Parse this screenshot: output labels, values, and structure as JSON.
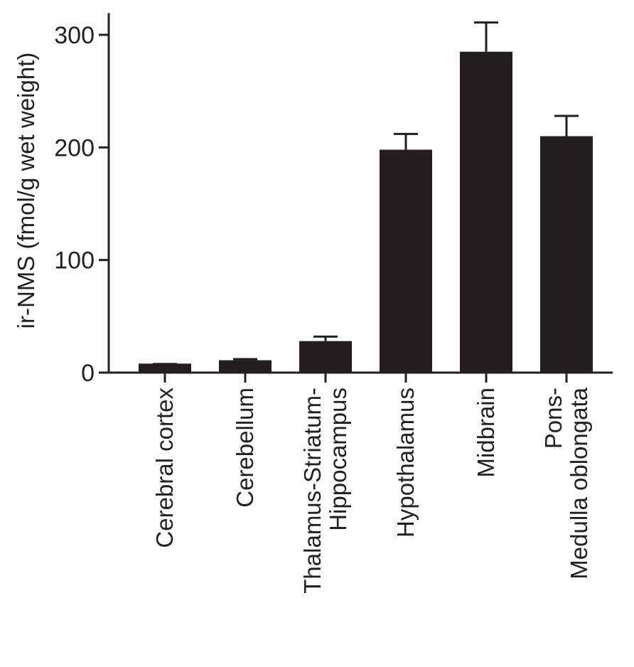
{
  "chart_data": {
    "type": "bar",
    "title": "",
    "xlabel": "",
    "ylabel": "ir-NMS (fmol/g wet weight)",
    "ylim": [
      0,
      320
    ],
    "yticks": [
      0,
      100,
      200,
      300
    ],
    "grid": false,
    "legend": "none",
    "bar_color": "#231f20",
    "categories": [
      [
        "Cerebral cortex"
      ],
      [
        "Cerebellum"
      ],
      [
        "Thalamus-Striatum-",
        "Hippocampus"
      ],
      [
        "Hypothalamus"
      ],
      [
        "Midbrain"
      ],
      [
        "Pons-",
        "Medulla oblongata"
      ]
    ],
    "values": [
      8,
      11,
      28,
      198,
      285,
      210
    ],
    "errors": [
      0,
      1,
      4,
      14,
      26,
      18
    ]
  }
}
